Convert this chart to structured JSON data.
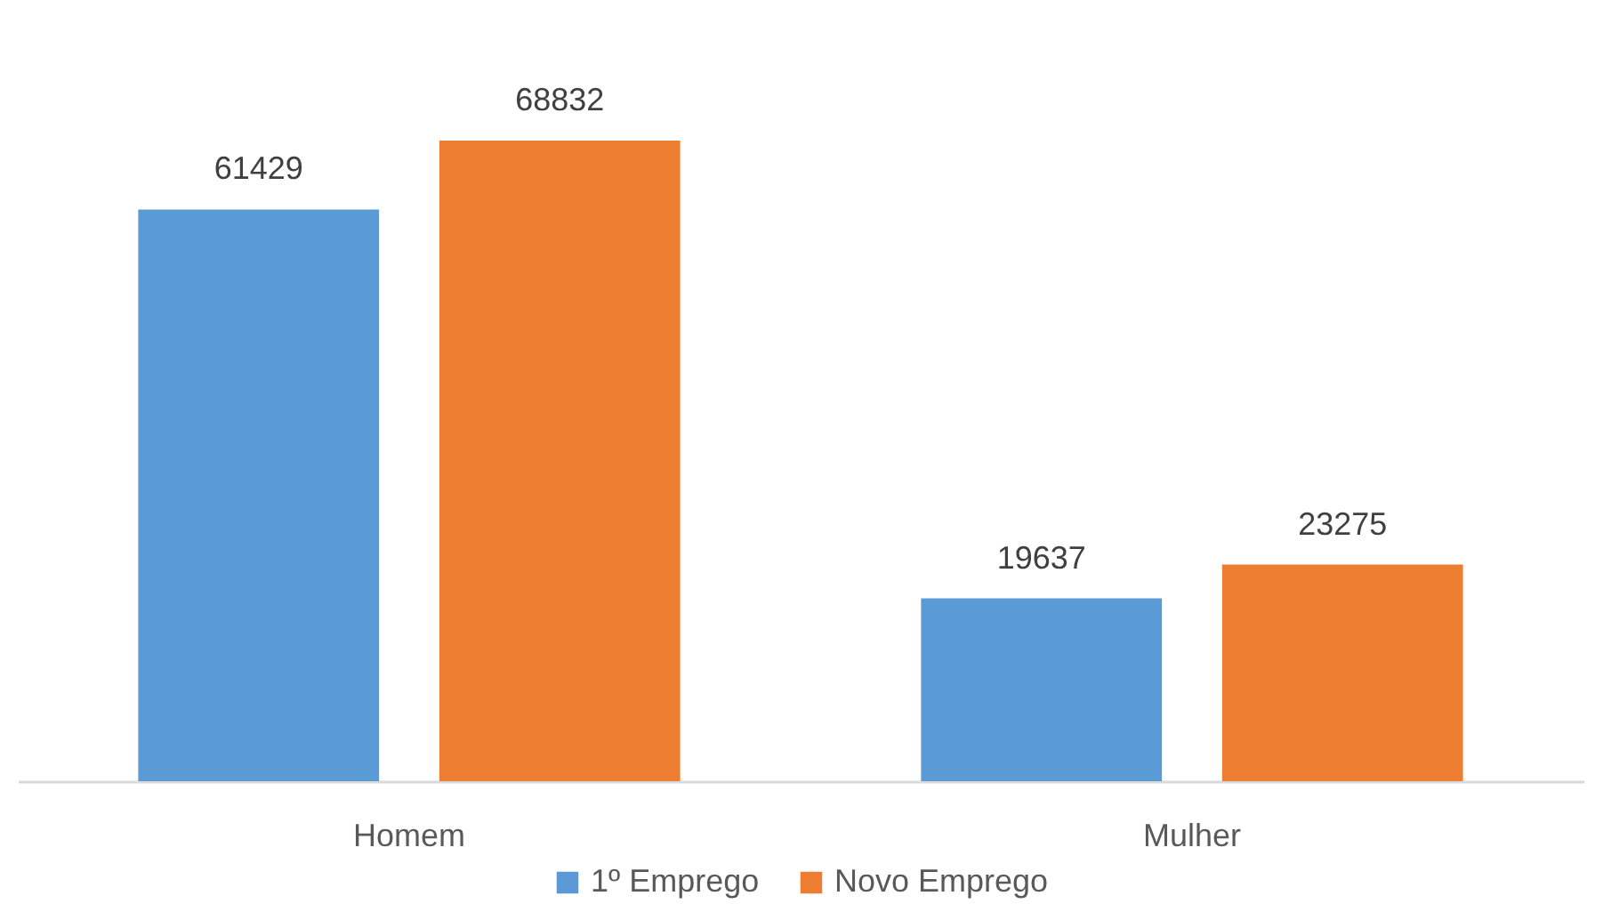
{
  "chart_data": {
    "type": "bar",
    "categories": [
      "Homem",
      "Mulher"
    ],
    "series": [
      {
        "name": "1º Emprego",
        "color": "#5b9bd5",
        "values": [
          61429,
          19637
        ]
      },
      {
        "name": "Novo Emprego",
        "color": "#ed7d31",
        "values": [
          68832,
          23275
        ]
      }
    ],
    "data_labels": true,
    "legend": "bottom",
    "grid": false
  }
}
